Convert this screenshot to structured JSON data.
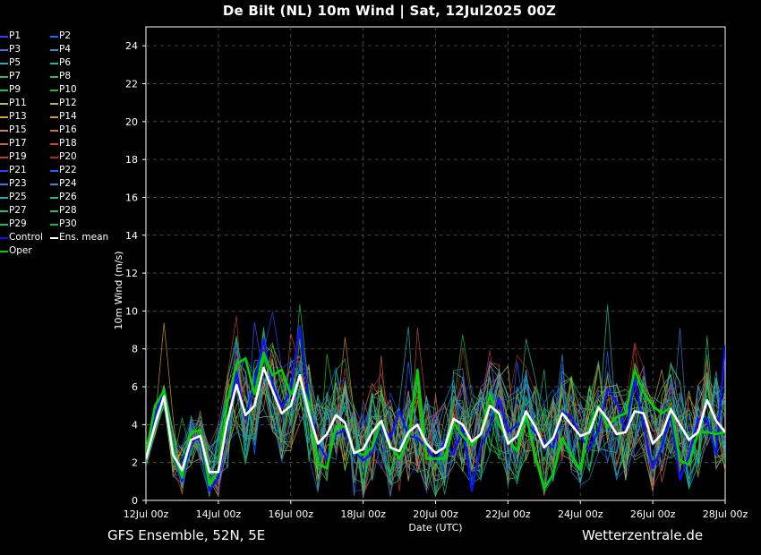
{
  "title": "De Bilt  (NL)  10m Wind | Sat, 12Jul2025 00Z",
  "footer": {
    "left": "GFS Ensemble, 52N, 5E",
    "right": "Wetterzentrale.de"
  },
  "legend": [
    {
      "label": "P1",
      "color": "#2f3dff"
    },
    {
      "label": "P2",
      "color": "#1e64ff"
    },
    {
      "label": "P3",
      "color": "#3c78d8"
    },
    {
      "label": "P4",
      "color": "#2a8fd8"
    },
    {
      "label": "P5",
      "color": "#22aabb"
    },
    {
      "label": "P6",
      "color": "#20b8a0"
    },
    {
      "label": "P7",
      "color": "#22b884"
    },
    {
      "label": "P8",
      "color": "#1fbf6a"
    },
    {
      "label": "P9",
      "color": "#19c04e"
    },
    {
      "label": "P10",
      "color": "#10c030"
    },
    {
      "label": "P11",
      "color": "#b5c23c"
    },
    {
      "label": "P12",
      "color": "#c9b53a"
    },
    {
      "label": "P13",
      "color": "#d4a833"
    },
    {
      "label": "P14",
      "color": "#d4982f"
    },
    {
      "label": "P15",
      "color": "#c98a3a"
    },
    {
      "label": "P16",
      "color": "#c9733a"
    },
    {
      "label": "P17",
      "color": "#c9603a"
    },
    {
      "label": "P18",
      "color": "#c04b32"
    },
    {
      "label": "P19",
      "color": "#b83b2c"
    },
    {
      "label": "P20",
      "color": "#a82d20"
    },
    {
      "label": "P21",
      "color": "#2f3dff"
    },
    {
      "label": "P22",
      "color": "#1e64ff"
    },
    {
      "label": "P23",
      "color": "#3c78d8"
    },
    {
      "label": "P24",
      "color": "#2a8fd8"
    },
    {
      "label": "P25",
      "color": "#22aabb"
    },
    {
      "label": "P26",
      "color": "#20b8a0"
    },
    {
      "label": "P27",
      "color": "#22b884"
    },
    {
      "label": "P28",
      "color": "#1fbf6a"
    },
    {
      "label": "P29",
      "color": "#19c04e"
    },
    {
      "label": "P30",
      "color": "#10c030"
    },
    {
      "label": "Control",
      "color": "#1010ff"
    },
    {
      "label": "Ens. mean",
      "color": "#ffffff"
    },
    {
      "label": "Oper",
      "color": "#00d400"
    }
  ],
  "chart_data": {
    "type": "line",
    "xlabel": "Date (UTC)",
    "ylabel": "10m Wind (m/s)",
    "ylim": [
      0,
      25
    ],
    "yticks": [
      0,
      2,
      4,
      6,
      8,
      10,
      12,
      14,
      16,
      18,
      20,
      22,
      24
    ],
    "xlim": [
      0,
      384
    ],
    "xticks": [
      {
        "hour": 0,
        "label": "12Jul 00z"
      },
      {
        "hour": 48,
        "label": "14Jul 00z"
      },
      {
        "hour": 96,
        "label": "16Jul 00z"
      },
      {
        "hour": 144,
        "label": "18Jul 00z"
      },
      {
        "hour": 192,
        "label": "20Jul 00z"
      },
      {
        "hour": 240,
        "label": "22Jul 00z"
      },
      {
        "hour": 288,
        "label": "24Jul 00z"
      },
      {
        "hour": 336,
        "label": "26Jul 00z"
      },
      {
        "hour": 384,
        "label": "28Jul 00z"
      }
    ],
    "grid": true,
    "hours": [
      0,
      6,
      12,
      18,
      24,
      30,
      36,
      42,
      48,
      54,
      60,
      66,
      72,
      78,
      84,
      90,
      96,
      102,
      108,
      114,
      120,
      126,
      132,
      138,
      144,
      150,
      156,
      162,
      168,
      174,
      180,
      186,
      192,
      198,
      204,
      210,
      216,
      222,
      228,
      234,
      240,
      246,
      252,
      258,
      264,
      270,
      276,
      282,
      288,
      294,
      300,
      306,
      312,
      318,
      324,
      330,
      336,
      342,
      348,
      354,
      360,
      366,
      372,
      378,
      384
    ],
    "series": [
      {
        "name": "Ens. mean",
        "color": "#ffffff",
        "width": 2.6,
        "values": [
          2.2,
          4.0,
          5.5,
          2.4,
          1.6,
          3.2,
          3.4,
          1.5,
          1.5,
          4.2,
          6.1,
          4.5,
          5.0,
          7.0,
          5.8,
          4.6,
          5.0,
          6.6,
          4.6,
          3.0,
          3.5,
          4.5,
          4.1,
          2.5,
          2.7,
          3.6,
          4.2,
          2.8,
          2.6,
          3.6,
          4.0,
          3.0,
          2.5,
          2.8,
          4.3,
          4.0,
          3.1,
          3.5,
          5.0,
          4.6,
          3.0,
          3.4,
          4.7,
          3.9,
          2.8,
          3.3,
          4.6,
          4.0,
          3.4,
          3.6,
          4.9,
          4.3,
          3.5,
          3.6,
          4.7,
          4.6,
          3.0,
          3.5,
          4.8,
          4.0,
          3.2,
          3.6,
          5.3,
          4.2,
          3.6
        ]
      },
      {
        "name": "Oper",
        "color": "#00d400",
        "width": 2.6,
        "values": [
          2.4,
          5.0,
          5.8,
          2.6,
          1.2,
          3.6,
          3.7,
          0.8,
          1.6,
          5.2,
          7.2,
          7.5,
          5.6,
          7.8,
          6.6,
          6.9,
          5.6,
          6.4,
          5.1,
          1.9,
          1.7,
          3.9,
          3.9,
          2.6,
          2.4,
          2.8,
          4.2,
          2.9,
          2.2,
          3.2,
          6.9,
          2.2,
          2.2,
          2.2,
          4.1,
          3.4,
          2.9,
          3.5,
          5.6,
          4.0,
          3.2,
          2.6,
          4.5,
          2.4,
          0.6,
          1.4,
          3.3,
          2.4,
          1.6,
          3.9,
          5.0,
          3.9,
          4.4,
          4.6,
          6.9,
          5.7,
          5.0,
          4.6,
          4.9,
          2.1,
          1.9,
          3.6,
          3.6,
          3.5,
          3.6
        ]
      },
      {
        "name": "Control",
        "color": "#1010ff",
        "width": 2.2,
        "values": [
          2.3,
          4.5,
          5.7,
          2.5,
          1.0,
          3.1,
          3.3,
          0.5,
          1.2,
          4.1,
          6.8,
          4.3,
          6.2,
          8.5,
          6.1,
          4.9,
          5.8,
          9.2,
          5.2,
          3.0,
          2.2,
          3.5,
          3.7,
          2.6,
          2.1,
          2.5,
          4.0,
          3.3,
          4.7,
          3.4,
          3.3,
          2.8,
          2.1,
          3.1,
          2.4,
          3.9,
          0.5,
          2.8,
          3.9,
          5.4,
          3.6,
          4.0,
          4.1,
          3.6,
          3.1,
          2.8,
          4.7,
          4.4,
          3.4,
          2.7,
          3.7,
          5.9,
          5.2,
          3.6,
          6.4,
          3.9,
          1.7,
          2.8,
          4.6,
          1.1,
          2.4,
          4.3,
          4.3,
          2.4,
          8.2
        ]
      }
    ],
    "members_note": "30 thin ensemble members (P1–P30) spread roughly between 0 and 11 m/s around the mean"
  }
}
